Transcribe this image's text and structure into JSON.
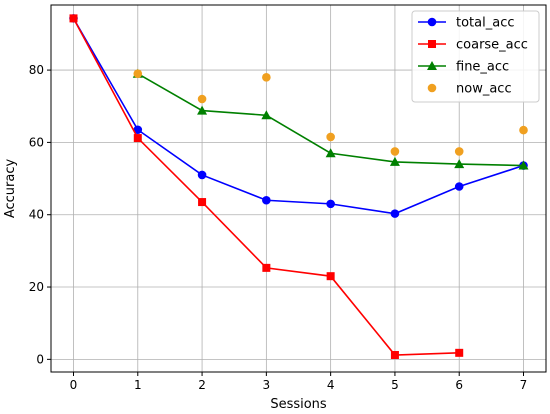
{
  "chart_data": {
    "type": "line",
    "title": "",
    "xlabel": "Sessions",
    "ylabel": "Accuracy",
    "xlim": [
      -0.35,
      7.35
    ],
    "ylim": [
      -3.5,
      98
    ],
    "xticks": [
      0,
      1,
      2,
      3,
      4,
      5,
      6,
      7
    ],
    "yticks": [
      0,
      20,
      40,
      60,
      80
    ],
    "grid": true,
    "legend_position": "top-right",
    "series": [
      {
        "name": "total_acc",
        "color": "#0000ff",
        "marker": "circle",
        "style": "line",
        "x": [
          0,
          1,
          2,
          3,
          4,
          5,
          6,
          7
        ],
        "y": [
          94.3,
          63.5,
          51.0,
          44.0,
          43.0,
          40.3,
          47.8,
          53.6
        ]
      },
      {
        "name": "coarse_acc",
        "color": "#ff0000",
        "marker": "square",
        "style": "line",
        "x": [
          0,
          1,
          2,
          3,
          4,
          5,
          6
        ],
        "y": [
          94.3,
          61.2,
          43.5,
          25.3,
          23.0,
          1.2,
          1.8
        ]
      },
      {
        "name": "fine_acc",
        "color": "#008000",
        "marker": "triangle",
        "style": "line",
        "x": [
          1,
          2,
          3,
          4,
          5,
          6,
          7
        ],
        "y": [
          79.0,
          68.8,
          67.5,
          57.0,
          54.6,
          54.0,
          53.6
        ]
      },
      {
        "name": "now_acc",
        "color": "#f0a020",
        "marker": "circle",
        "style": "scatter",
        "x": [
          1,
          2,
          3,
          4,
          5,
          6,
          7
        ],
        "y": [
          79.0,
          72.0,
          78.0,
          61.5,
          57.5,
          57.5,
          63.4
        ]
      }
    ]
  }
}
